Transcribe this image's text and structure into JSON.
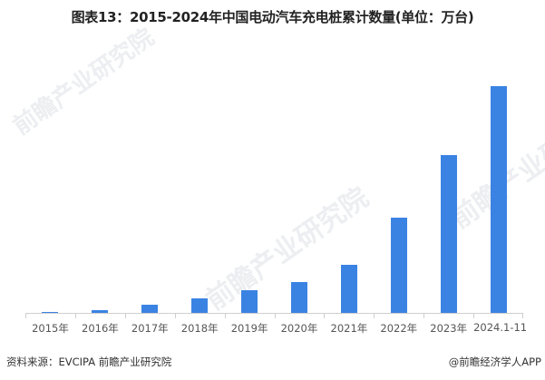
{
  "header": {
    "title": "图表13：2015-2024年中国电动汽车充电桩累计数量(单位：万台)"
  },
  "footer": {
    "source": "资料来源：EVCIPA 前瞻产业研究院",
    "credit": "@前瞻经济学人APP"
  },
  "watermarks": [
    "前瞻产业研究院",
    "前瞻产业研究院",
    "前瞻产业研究院"
  ],
  "colors": {
    "bar": "#3a83e3"
  },
  "chart_data": {
    "type": "bar",
    "title": "图表13：2015-2024年中国电动汽车充电桩累计数量(单位：万台)",
    "xlabel": "",
    "ylabel": "万台",
    "categories": [
      "2015年",
      "2016年",
      "2017年",
      "2018年",
      "2019年",
      "2020年",
      "2021年",
      "2022年",
      "2023年",
      "2024.1-11"
    ],
    "values": [
      6.6,
      15,
      45,
      78,
      122,
      168,
      262,
      521,
      860,
      1235
    ],
    "ylim": [
      0,
      1300
    ],
    "grid": false,
    "legend": "none"
  }
}
